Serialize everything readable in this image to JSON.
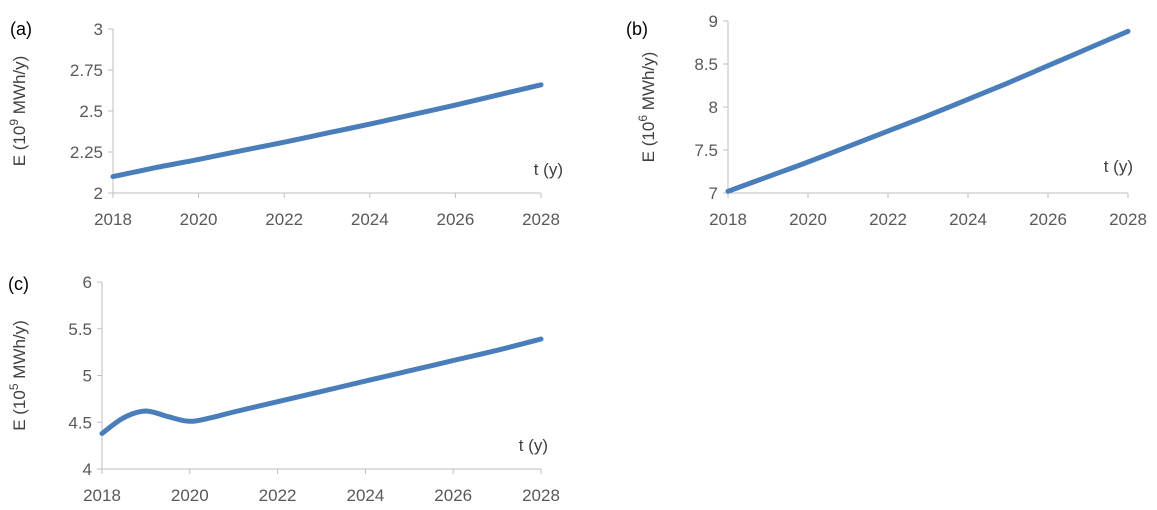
{
  "colors": {
    "series": "#4a7ebb",
    "axis": "#bfbfbf",
    "text": "#595959"
  },
  "chart_data": [
    {
      "type": "line",
      "panel_label": "(a)",
      "ylabel": {
        "prefix": "E (10",
        "exp": "9",
        "suffix": " MWh/y)"
      },
      "xlabel": "t (y)",
      "xlim": [
        2018,
        2028
      ],
      "ylim": [
        2,
        3
      ],
      "xticks": [
        2018,
        2020,
        2022,
        2024,
        2026,
        2028
      ],
      "yticks": [
        "2",
        "2.25",
        "2.5",
        "2.75",
        "3"
      ],
      "x": [
        2018,
        2019,
        2020,
        2021,
        2022,
        2023,
        2024,
        2025,
        2026,
        2027,
        2028
      ],
      "series": [
        {
          "values": [
            2.1,
            2.155,
            2.205,
            2.258,
            2.31,
            2.365,
            2.42,
            2.478,
            2.536,
            2.598,
            2.66
          ]
        }
      ]
    },
    {
      "type": "line",
      "panel_label": "(b)",
      "ylabel": {
        "prefix": "E (10",
        "exp": "6",
        "suffix": " MWh/y)"
      },
      "xlabel": "t (y)",
      "xlim": [
        2018,
        2028
      ],
      "ylim": [
        7,
        9
      ],
      "xticks": [
        2018,
        2020,
        2022,
        2024,
        2026,
        2028
      ],
      "yticks": [
        "7",
        "7.5",
        "8",
        "8.5",
        "9"
      ],
      "x": [
        2018,
        2019,
        2020,
        2021,
        2022,
        2023,
        2024,
        2025,
        2026,
        2027,
        2028
      ],
      "series": [
        {
          "values": [
            7.02,
            7.19,
            7.36,
            7.54,
            7.72,
            7.9,
            8.09,
            8.28,
            8.48,
            8.68,
            8.88
          ]
        }
      ]
    },
    {
      "type": "line",
      "panel_label": "(c)",
      "ylabel": {
        "prefix": "E (10",
        "exp": "5",
        "suffix": " MWh/y)"
      },
      "xlabel": "t (y)",
      "xlim": [
        2018,
        2028
      ],
      "ylim": [
        4,
        6
      ],
      "xticks": [
        2018,
        2020,
        2022,
        2024,
        2026,
        2028
      ],
      "yticks": [
        "4",
        "4.5",
        "5",
        "5.5",
        "6"
      ],
      "x": [
        2018,
        2018.5,
        2019,
        2019.5,
        2020,
        2020.5,
        2021,
        2022,
        2023,
        2024,
        2025,
        2026,
        2027,
        2028
      ],
      "series": [
        {
          "values": [
            4.38,
            4.55,
            4.62,
            4.56,
            4.51,
            4.55,
            4.61,
            4.72,
            4.83,
            4.94,
            5.05,
            5.16,
            5.27,
            5.39
          ]
        }
      ]
    }
  ]
}
